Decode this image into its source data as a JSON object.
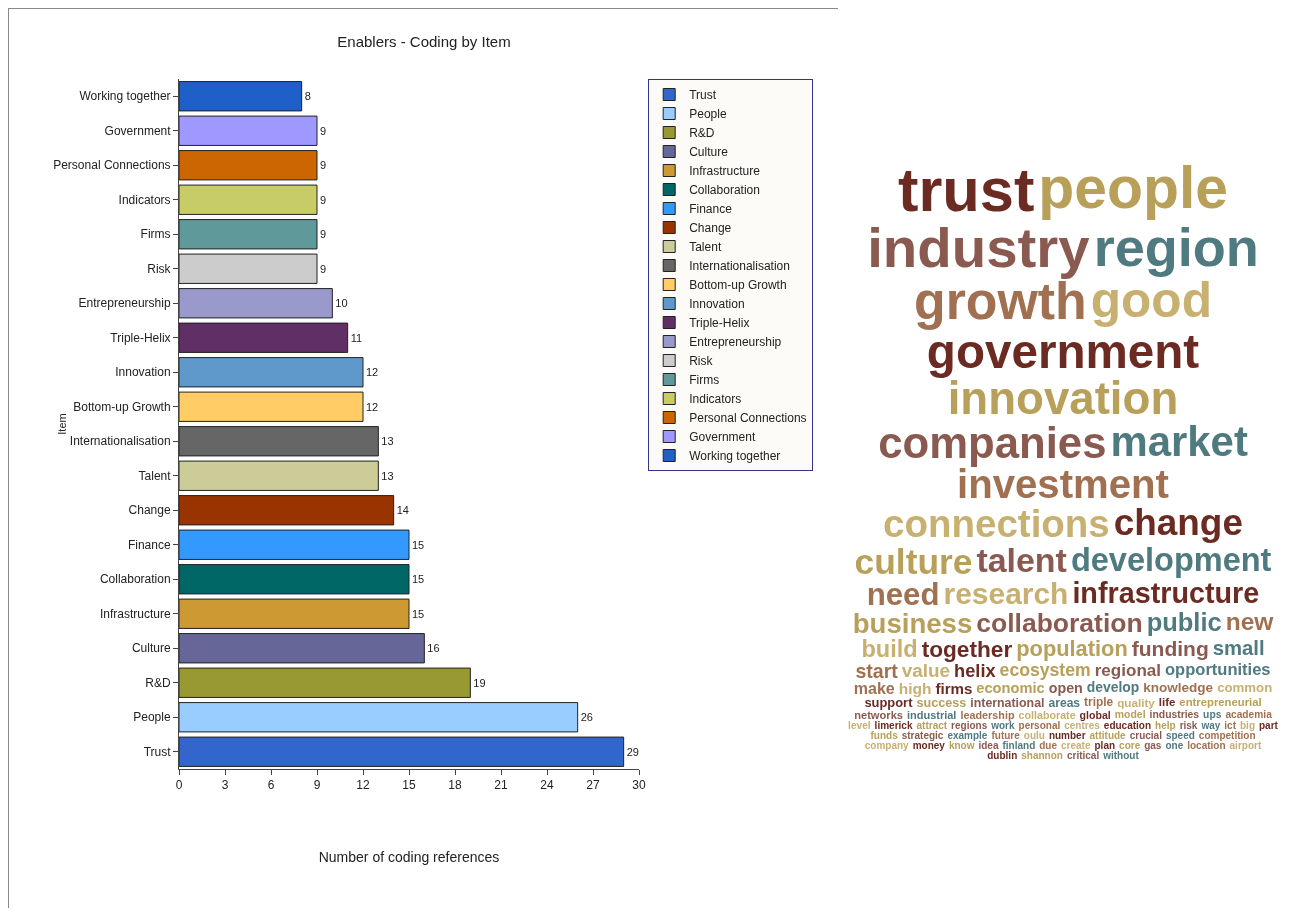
{
  "chart_data": [
    {
      "type": "bar",
      "orientation": "horizontal",
      "title": "Enablers - Coding by Item",
      "xlabel": "Number of coding references",
      "ylabel": "Item",
      "categories": [
        "Working together",
        "Government",
        "Personal Connections",
        "Indicators",
        "Firms",
        "Risk",
        "Entrepreneurship",
        "Triple-Helix",
        "Innovation",
        "Bottom-up Growth",
        "Internationalisation",
        "Talent",
        "Change",
        "Finance",
        "Collaboration",
        "Infrastructure",
        "Culture",
        "R&D",
        "People",
        "Trust"
      ],
      "series": [
        {
          "name": "Working together",
          "color": "#1f5fc8",
          "values": [
            8,
            null,
            null,
            null,
            null,
            null,
            null,
            null,
            null,
            null,
            null,
            null,
            null,
            null,
            null,
            null,
            null,
            null,
            null,
            null
          ]
        },
        {
          "name": "Government",
          "color": "#9f99ff",
          "values": [
            null,
            9,
            null,
            null,
            null,
            null,
            null,
            null,
            null,
            null,
            null,
            null,
            null,
            null,
            null,
            null,
            null,
            null,
            null,
            null
          ]
        },
        {
          "name": "Personal Connections",
          "color": "#cc6600",
          "values": [
            null,
            null,
            9,
            null,
            null,
            null,
            null,
            null,
            null,
            null,
            null,
            null,
            null,
            null,
            null,
            null,
            null,
            null,
            null,
            null
          ]
        },
        {
          "name": "Indicators",
          "color": "#c8cc66",
          "values": [
            null,
            null,
            null,
            9,
            null,
            null,
            null,
            null,
            null,
            null,
            null,
            null,
            null,
            null,
            null,
            null,
            null,
            null,
            null,
            null
          ]
        },
        {
          "name": "Firms",
          "color": "#5f9999",
          "values": [
            null,
            null,
            null,
            null,
            9,
            null,
            null,
            null,
            null,
            null,
            null,
            null,
            null,
            null,
            null,
            null,
            null,
            null,
            null,
            null
          ]
        },
        {
          "name": "Risk",
          "color": "#cccccc",
          "values": [
            null,
            null,
            null,
            null,
            null,
            9,
            null,
            null,
            null,
            null,
            null,
            null,
            null,
            null,
            null,
            null,
            null,
            null,
            null,
            null
          ]
        },
        {
          "name": "Entrepreneurship",
          "color": "#9999cc",
          "values": [
            null,
            null,
            null,
            null,
            null,
            null,
            10,
            null,
            null,
            null,
            null,
            null,
            null,
            null,
            null,
            null,
            null,
            null,
            null,
            null
          ]
        },
        {
          "name": "Triple-Helix",
          "color": "#5f2f66",
          "values": [
            null,
            null,
            null,
            null,
            null,
            null,
            null,
            11,
            null,
            null,
            null,
            null,
            null,
            null,
            null,
            null,
            null,
            null,
            null,
            null
          ]
        },
        {
          "name": "Innovation",
          "color": "#5f99cc",
          "values": [
            null,
            null,
            null,
            null,
            null,
            null,
            null,
            null,
            12,
            null,
            null,
            null,
            null,
            null,
            null,
            null,
            null,
            null,
            null,
            null
          ]
        },
        {
          "name": "Bottom-up Growth",
          "color": "#ffcc66",
          "values": [
            null,
            null,
            null,
            null,
            null,
            null,
            null,
            null,
            null,
            12,
            null,
            null,
            null,
            null,
            null,
            null,
            null,
            null,
            null,
            null
          ]
        },
        {
          "name": "Internationalisation",
          "color": "#666666",
          "values": [
            null,
            null,
            null,
            null,
            null,
            null,
            null,
            null,
            null,
            null,
            13,
            null,
            null,
            null,
            null,
            null,
            null,
            null,
            null,
            null
          ]
        },
        {
          "name": "Talent",
          "color": "#cccc99",
          "values": [
            null,
            null,
            null,
            null,
            null,
            null,
            null,
            null,
            null,
            null,
            null,
            13,
            null,
            null,
            null,
            null,
            null,
            null,
            null,
            null
          ]
        },
        {
          "name": "Change",
          "color": "#993300",
          "values": [
            null,
            null,
            null,
            null,
            null,
            null,
            null,
            null,
            null,
            null,
            null,
            null,
            14,
            null,
            null,
            null,
            null,
            null,
            null,
            null
          ]
        },
        {
          "name": "Finance",
          "color": "#3399ff",
          "values": [
            null,
            null,
            null,
            null,
            null,
            null,
            null,
            null,
            null,
            null,
            null,
            null,
            null,
            15,
            null,
            null,
            null,
            null,
            null,
            null
          ]
        },
        {
          "name": "Collaboration",
          "color": "#006666",
          "values": [
            null,
            null,
            null,
            null,
            null,
            null,
            null,
            null,
            null,
            null,
            null,
            null,
            null,
            null,
            15,
            null,
            null,
            null,
            null,
            null
          ]
        },
        {
          "name": "Infrastructure",
          "color": "#cc9933",
          "values": [
            null,
            null,
            null,
            null,
            null,
            null,
            null,
            null,
            null,
            null,
            null,
            null,
            null,
            null,
            null,
            15,
            null,
            null,
            null,
            null
          ]
        },
        {
          "name": "Culture",
          "color": "#666699",
          "values": [
            null,
            null,
            null,
            null,
            null,
            null,
            null,
            null,
            null,
            null,
            null,
            null,
            null,
            null,
            null,
            null,
            16,
            null,
            null,
            null
          ]
        },
        {
          "name": "R&D",
          "color": "#999933",
          "values": [
            null,
            null,
            null,
            null,
            null,
            null,
            null,
            null,
            null,
            null,
            null,
            null,
            null,
            null,
            null,
            null,
            null,
            19,
            null,
            null
          ]
        },
        {
          "name": "People",
          "color": "#99ccff",
          "values": [
            null,
            null,
            null,
            null,
            null,
            null,
            null,
            null,
            null,
            null,
            null,
            null,
            null,
            null,
            null,
            null,
            null,
            null,
            26,
            null
          ]
        },
        {
          "name": "Trust",
          "color": "#3366cc",
          "values": [
            null,
            null,
            null,
            null,
            null,
            null,
            null,
            null,
            null,
            null,
            null,
            null,
            null,
            null,
            null,
            null,
            null,
            null,
            null,
            29
          ]
        }
      ],
      "data_labels": true,
      "xlim": [
        0,
        30
      ],
      "xticks": [
        0,
        3,
        6,
        9,
        12,
        15,
        18,
        21,
        24,
        27,
        30
      ],
      "legend": "right",
      "grid": false
    },
    {
      "type": "other",
      "annotations": [
        "trust",
        "people",
        "industry",
        "region",
        "growth",
        "good",
        "government",
        "innovation",
        "companies",
        "market",
        "investment",
        "connections",
        "change",
        "culture",
        "talent",
        "development",
        "need",
        "research",
        "infrastructure",
        "business",
        "collaboration",
        "public",
        "new",
        "build",
        "together",
        "population",
        "funding",
        "small",
        "start",
        "value",
        "helix",
        "ecosystem",
        "regional",
        "opportunities",
        "make",
        "high",
        "firms",
        "economic",
        "open",
        "develop",
        "knowledge",
        "common",
        "support",
        "success",
        "international",
        "areas",
        "triple",
        "quality",
        "life",
        "entrepreneurial",
        "networks",
        "industrial",
        "leadership",
        "collaborate",
        "global",
        "model",
        "industries",
        "ups",
        "academia",
        "level",
        "limerick",
        "attract",
        "regions",
        "work",
        "personal",
        "centres",
        "education",
        "help",
        "risk",
        "way",
        "ict",
        "big",
        "part",
        "funds",
        "strategic",
        "example",
        "future",
        "oulu",
        "number",
        "attitude",
        "crucial",
        "speed",
        "competition",
        "company",
        "money",
        "know",
        "idea",
        "finland",
        "due",
        "create",
        "plan",
        "core",
        "gas",
        "one",
        "location",
        "airport",
        "dublin",
        "shannon",
        "critical",
        "without"
      ]
    }
  ]
}
